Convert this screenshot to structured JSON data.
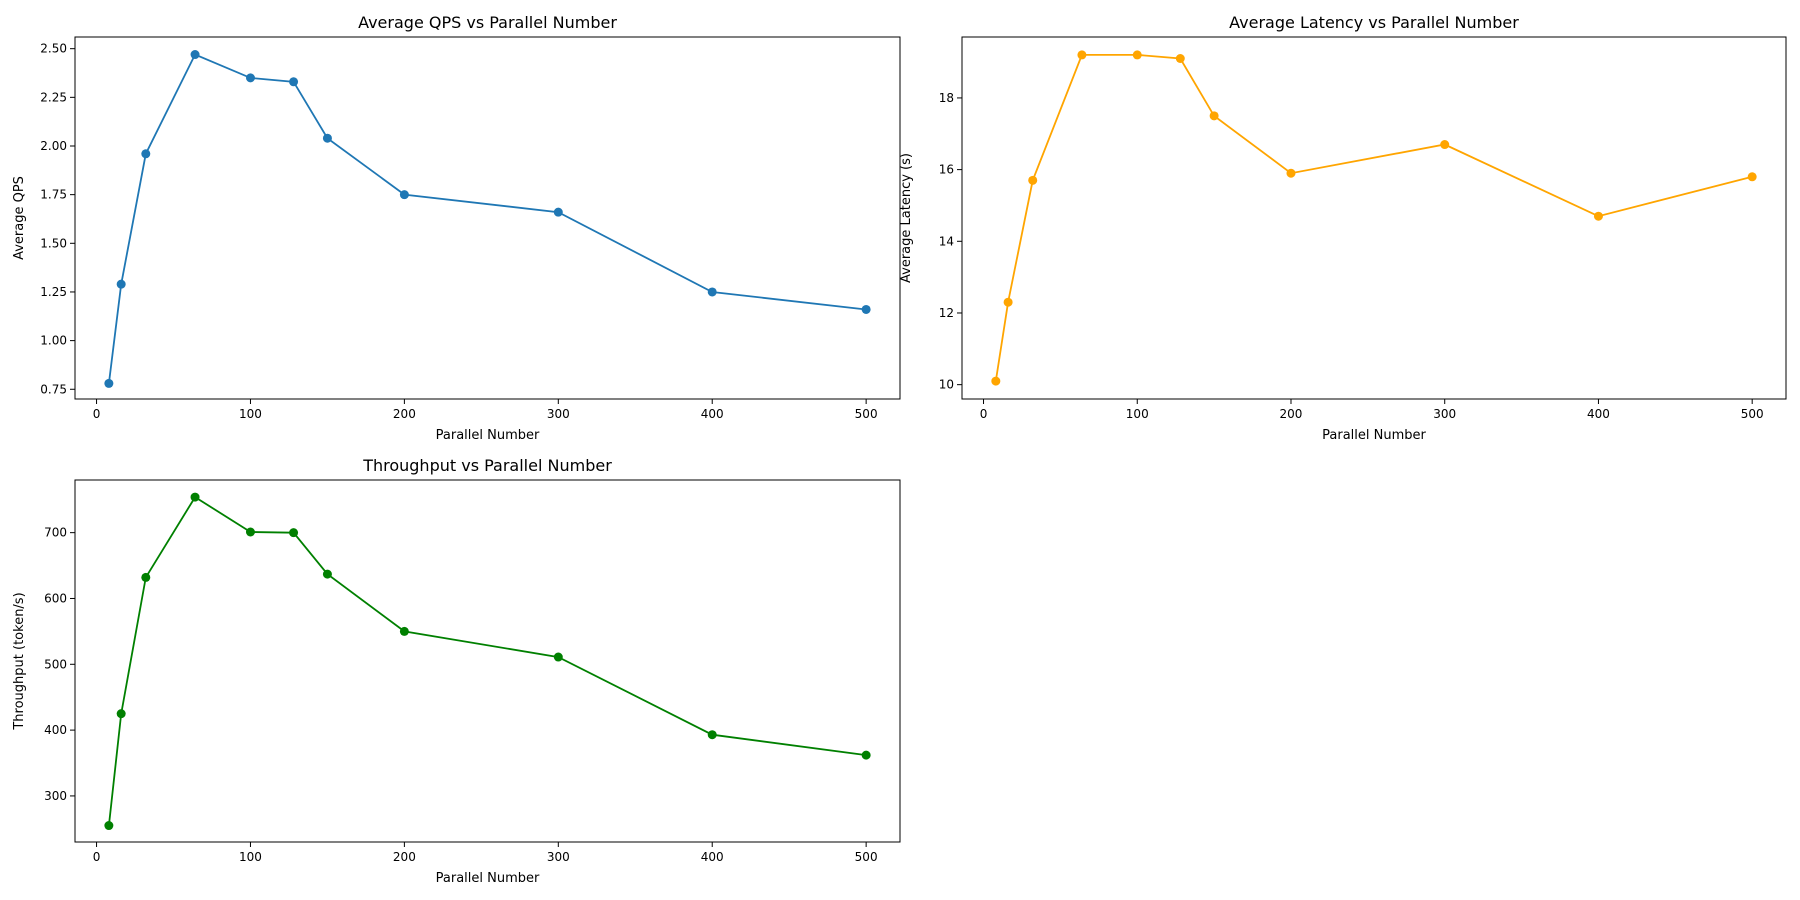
{
  "chart_data": [
    {
      "type": "line",
      "title": "Average QPS vs Parallel Number",
      "xlabel": "Parallel Number",
      "ylabel": "Average QPS",
      "color": "#1f77b4",
      "marker": "circle",
      "grid": false,
      "xlim": [
        -14,
        522
      ],
      "ylim": [
        0.7,
        2.56
      ],
      "xticks": [
        0,
        100,
        200,
        300,
        400,
        500
      ],
      "yticks": [
        0.75,
        1.0,
        1.25,
        1.5,
        1.75,
        2.0,
        2.25,
        2.5
      ],
      "ytick_labels": [
        "0.75",
        "1.00",
        "1.25",
        "1.50",
        "1.75",
        "2.00",
        "2.25",
        "2.50"
      ],
      "x": [
        8,
        16,
        32,
        64,
        100,
        128,
        150,
        200,
        300,
        400,
        500
      ],
      "y": [
        0.78,
        1.29,
        1.96,
        2.47,
        2.35,
        2.33,
        2.04,
        1.75,
        1.66,
        1.25,
        1.16
      ]
    },
    {
      "type": "line",
      "title": "Average Latency vs Parallel Number",
      "xlabel": "Parallel Number",
      "ylabel": "Average Latency (s)",
      "color": "#ffa500",
      "marker": "circle",
      "grid": false,
      "xlim": [
        -14,
        522
      ],
      "ylim": [
        9.6,
        19.7
      ],
      "xticks": [
        0,
        100,
        200,
        300,
        400,
        500
      ],
      "yticks": [
        10,
        12,
        14,
        16,
        18
      ],
      "ytick_labels": [
        "10",
        "12",
        "14",
        "16",
        "18"
      ],
      "x": [
        8,
        16,
        32,
        64,
        100,
        128,
        150,
        200,
        300,
        400,
        500
      ],
      "y": [
        10.1,
        12.3,
        15.7,
        19.2,
        19.2,
        19.1,
        17.5,
        15.9,
        16.7,
        14.7,
        15.8
      ]
    },
    {
      "type": "line",
      "title": "Throughput vs Parallel Number",
      "xlabel": "Parallel Number",
      "ylabel": "Throughput (token/s)",
      "color": "#008000",
      "marker": "circle",
      "grid": false,
      "xlim": [
        -14,
        522
      ],
      "ylim": [
        230,
        780
      ],
      "xticks": [
        0,
        100,
        200,
        300,
        400,
        500
      ],
      "yticks": [
        300,
        400,
        500,
        600,
        700
      ],
      "ytick_labels": [
        "300",
        "400",
        "500",
        "600",
        "700"
      ],
      "x": [
        8,
        16,
        32,
        64,
        100,
        128,
        150,
        200,
        300,
        400,
        500
      ],
      "y": [
        255,
        425,
        632,
        754,
        701,
        700,
        637,
        550,
        511,
        393,
        362
      ]
    }
  ]
}
